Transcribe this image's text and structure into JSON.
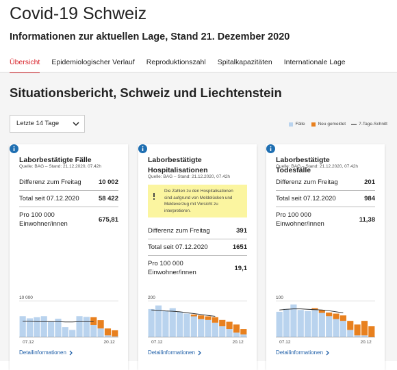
{
  "header": {
    "title": "Covid-19 Schweiz",
    "subtitle": "Informationen zur aktuellen Lage, Stand 21. Dezember 2020"
  },
  "tabs": [
    "Übersicht",
    "Epidemiologischer Verlauf",
    "Reproduktionszahl",
    "Spitalkapazitäten",
    "Internationale Lage"
  ],
  "section_title": "Situationsbericht, Schweiz und Liechtenstein",
  "dropdown": "Letzte 14 Tage",
  "legend": [
    {
      "name": "Fälle",
      "color": "#b9d3ee"
    },
    {
      "name": "Neu gemeldet",
      "color": "#e8801e"
    },
    {
      "name": "7-Tage-Schnitt",
      "color": "#333333"
    }
  ],
  "cards": [
    {
      "title": "Laborbestätigte Fälle",
      "source": "Quelle: BAG – Stand: 21.12.2020, 07.42h",
      "rows": [
        [
          "Differenz zum Freitag",
          "10 002"
        ],
        [
          "Total seit 07.12.2020",
          "58 422"
        ],
        [
          "Pro 100 000 Einwohner/innen",
          "675,81"
        ]
      ],
      "chart": {
        "type": "bar",
        "categories": [
          "07.12",
          null,
          null,
          null,
          null,
          null,
          null,
          null,
          null,
          null,
          null,
          null,
          null,
          "20.12"
        ],
        "series": [
          {
            "values": [
              5800,
              5200,
              5500,
              5800,
              4400,
              5100,
              2800,
              2000,
              5800,
              5600,
              3400,
              2400,
              500,
              200
            ]
          },
          {
            "values": [
              null,
              null,
              null,
              null,
              null,
              null,
              null,
              null,
              null,
              null,
              2100,
              2300,
              1900,
              1700
            ]
          },
          {
            "values": [
              4400,
              4400,
              4300,
              4300,
              4300,
              4300,
              4200,
              4200,
              4300,
              4300,
              4300,
              null,
              null,
              null
            ]
          }
        ],
        "ylim": [
          0,
          10000
        ],
        "yticks": [
          {
            "value": 10000,
            "label": "10 000"
          }
        ]
      },
      "link": "Detailinformationen"
    },
    {
      "title": "Laborbestätigte Hospitalisationen",
      "source": "Quelle: BAG – Stand: 21.12.2020, 07.42h",
      "note": "Die Zahlen zu den Hospitalisationen sind aufgrund von Meldelücken und Meldeverzug mit Vorsicht zu interpretieren.",
      "rows": [
        [
          "Differenz zum Freitag",
          "391"
        ],
        [
          "Total seit 07.12.2020",
          "1651"
        ],
        [
          "Pro 100 000 Einwohner/innen",
          "19,1"
        ]
      ],
      "chart": {
        "type": "bar",
        "categories": [
          "07.12",
          null,
          null,
          null,
          null,
          null,
          null,
          null,
          null,
          null,
          null,
          null,
          null,
          "20.12"
        ],
        "series": [
          {
            "values": [
              155,
              175,
              145,
              160,
              140,
              130,
              115,
              100,
              95,
              80,
              60,
              45,
              25,
              15
            ]
          },
          {
            "values": [
              null,
              null,
              null,
              null,
              null,
              null,
              10,
              20,
              20,
              30,
              35,
              40,
              45,
              30
            ]
          },
          {
            "values": [
              150,
              148,
              145,
              143,
              140,
              135,
              130,
              125,
              120,
              115,
              null,
              null,
              null,
              null
            ]
          }
        ],
        "ylim": [
          0,
          200
        ],
        "yticks": [
          200
        ]
      },
      "link": "Detailinformationen"
    },
    {
      "title": "Laborbestätigte Todesfälle",
      "source": "Quelle: BAG – Stand: 21.12.2020, 07.42h",
      "rows": [
        [
          "Differenz zum Freitag",
          "201"
        ],
        [
          "Total seit 07.12.2020",
          "984"
        ],
        [
          "Pro 100 000 Einwohner/innen",
          "11,38"
        ]
      ],
      "chart": {
        "type": "bar",
        "categories": [
          "07.12",
          null,
          null,
          null,
          null,
          null,
          null,
          null,
          null,
          null,
          null,
          null,
          null,
          "20.12"
        ],
        "series": [
          {
            "values": [
              70,
              78,
              90,
              75,
              72,
              75,
              67,
              58,
              50,
              45,
              20,
              5,
              5,
              0
            ]
          },
          {
            "values": [
              null,
              null,
              null,
              null,
              null,
              5,
              8,
              10,
              15,
              15,
              25,
              30,
              40,
              30
            ]
          },
          {
            "values": [
              75,
              77,
              78,
              78,
              77,
              76,
              75,
              73,
              70,
              67,
              null,
              null,
              null,
              null
            ]
          }
        ],
        "ylim": [
          0,
          100
        ],
        "yticks": [
          100
        ]
      },
      "link": "Detailinformationen"
    }
  ]
}
